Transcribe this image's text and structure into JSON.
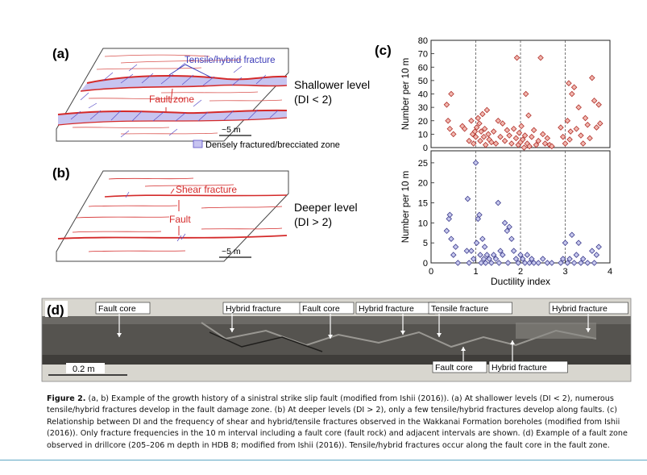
{
  "panels": {
    "a": {
      "letter": "(a)",
      "tensile_label": "Tensile/hybrid fracture",
      "fault_zone_label": "Fault zone",
      "level_label": "Shallower level",
      "di_label": "(DI < 2)",
      "scale_label": "~5 m",
      "legend_label": "Densely fractured/brecciated zone"
    },
    "b": {
      "letter": "(b)",
      "shear_label": "Shear fracture",
      "fault_label": "Fault",
      "level_label": "Deeper level",
      "di_label": "(DI > 2)",
      "scale_label": "~5 m"
    },
    "c": {
      "letter": "(c)"
    },
    "d": {
      "letter": "(d)",
      "scale_label": "0.2 m",
      "labels_top": [
        "Fault core",
        "Hybrid fracture",
        "Fault core",
        "Hybrid fracture",
        "Tensile fracture",
        "Hybrid fracture"
      ],
      "labels_bottom": [
        "Fault core",
        "Hybrid fracture"
      ]
    }
  },
  "chart_data": [
    {
      "type": "scatter",
      "name": "upper",
      "ylabel": "Number per 10 m",
      "ylim": [
        0,
        80
      ],
      "yticks": [
        0,
        10,
        20,
        30,
        40,
        50,
        60,
        70,
        80
      ],
      "xlim": [
        0,
        4
      ],
      "vlines": [
        1,
        2,
        3
      ],
      "marker_color": "#f2b8b0",
      "marker_edge": "#b0302a",
      "points": [
        [
          0.35,
          32
        ],
        [
          0.38,
          20
        ],
        [
          0.42,
          14
        ],
        [
          0.45,
          40
        ],
        [
          0.5,
          10
        ],
        [
          0.7,
          16
        ],
        [
          0.75,
          14
        ],
        [
          0.85,
          5
        ],
        [
          0.9,
          20
        ],
        [
          0.93,
          10
        ],
        [
          0.95,
          3
        ],
        [
          0.98,
          12
        ],
        [
          1.0,
          8
        ],
        [
          1.02,
          15
        ],
        [
          1.05,
          22
        ],
        [
          1.08,
          18
        ],
        [
          1.1,
          5
        ],
        [
          1.12,
          12
        ],
        [
          1.15,
          25
        ],
        [
          1.18,
          8
        ],
        [
          1.2,
          14
        ],
        [
          1.22,
          2
        ],
        [
          1.25,
          28
        ],
        [
          1.28,
          10
        ],
        [
          1.3,
          6
        ],
        [
          1.35,
          4
        ],
        [
          1.4,
          12
        ],
        [
          1.45,
          3
        ],
        [
          1.5,
          20
        ],
        [
          1.55,
          8
        ],
        [
          1.6,
          18
        ],
        [
          1.65,
          5
        ],
        [
          1.7,
          13
        ],
        [
          1.75,
          9
        ],
        [
          1.8,
          3
        ],
        [
          1.85,
          14
        ],
        [
          1.9,
          7
        ],
        [
          1.92,
          67
        ],
        [
          1.95,
          2
        ],
        [
          1.97,
          11
        ],
        [
          2.0,
          4
        ],
        [
          2.02,
          16
        ],
        [
          2.05,
          6
        ],
        [
          2.08,
          0
        ],
        [
          2.1,
          9
        ],
        [
          2.12,
          40
        ],
        [
          2.15,
          3
        ],
        [
          2.18,
          24
        ],
        [
          2.2,
          1
        ],
        [
          2.25,
          8
        ],
        [
          2.3,
          13
        ],
        [
          2.35,
          2
        ],
        [
          2.4,
          5
        ],
        [
          2.45,
          67
        ],
        [
          2.5,
          10
        ],
        [
          2.55,
          3
        ],
        [
          2.6,
          7
        ],
        [
          2.65,
          2
        ],
        [
          2.7,
          1
        ],
        [
          2.9,
          15
        ],
        [
          2.95,
          8
        ],
        [
          3.0,
          3
        ],
        [
          3.05,
          20
        ],
        [
          3.08,
          48
        ],
        [
          3.1,
          6
        ],
        [
          3.12,
          12
        ],
        [
          3.15,
          40
        ],
        [
          3.2,
          45
        ],
        [
          3.25,
          14
        ],
        [
          3.3,
          30
        ],
        [
          3.35,
          9
        ],
        [
          3.4,
          3
        ],
        [
          3.45,
          22
        ],
        [
          3.5,
          17
        ],
        [
          3.55,
          7
        ],
        [
          3.6,
          52
        ],
        [
          3.65,
          35
        ],
        [
          3.7,
          15
        ],
        [
          3.75,
          32
        ],
        [
          3.78,
          18
        ]
      ]
    },
    {
      "type": "scatter",
      "name": "lower",
      "ylabel": "Number per 10 m",
      "xlabel": "Ductility index",
      "ylim": [
        0,
        28
      ],
      "yticks": [
        0,
        5,
        10,
        15,
        20,
        25
      ],
      "xlim": [
        0,
        4
      ],
      "xticks": [
        0,
        1,
        2,
        3,
        4
      ],
      "vlines": [
        1,
        2,
        3
      ],
      "marker_color": "#c8c9ee",
      "marker_edge": "#3c3c8c",
      "points": [
        [
          0.35,
          8
        ],
        [
          0.4,
          11
        ],
        [
          0.42,
          12
        ],
        [
          0.45,
          6
        ],
        [
          0.5,
          2
        ],
        [
          0.55,
          4
        ],
        [
          0.6,
          0
        ],
        [
          0.8,
          3
        ],
        [
          0.82,
          16
        ],
        [
          0.85,
          0
        ],
        [
          0.9,
          3
        ],
        [
          0.95,
          1
        ],
        [
          1.0,
          25
        ],
        [
          1.02,
          5
        ],
        [
          1.05,
          11
        ],
        [
          1.08,
          12
        ],
        [
          1.1,
          2
        ],
        [
          1.12,
          0
        ],
        [
          1.15,
          6
        ],
        [
          1.18,
          1
        ],
        [
          1.2,
          4
        ],
        [
          1.22,
          0
        ],
        [
          1.25,
          2
        ],
        [
          1.3,
          1
        ],
        [
          1.35,
          0
        ],
        [
          1.4,
          2
        ],
        [
          1.45,
          1
        ],
        [
          1.5,
          15
        ],
        [
          1.52,
          0
        ],
        [
          1.55,
          3
        ],
        [
          1.6,
          2
        ],
        [
          1.65,
          10
        ],
        [
          1.7,
          8
        ],
        [
          1.72,
          0
        ],
        [
          1.75,
          9
        ],
        [
          1.8,
          6
        ],
        [
          1.85,
          3
        ],
        [
          1.9,
          1
        ],
        [
          1.95,
          0
        ],
        [
          2.0,
          2
        ],
        [
          2.05,
          1
        ],
        [
          2.1,
          0
        ],
        [
          2.15,
          2
        ],
        [
          2.2,
          0
        ],
        [
          2.25,
          1
        ],
        [
          2.3,
          0
        ],
        [
          2.4,
          0
        ],
        [
          2.5,
          1
        ],
        [
          2.6,
          0
        ],
        [
          2.7,
          0
        ],
        [
          2.9,
          0
        ],
        [
          2.95,
          1
        ],
        [
          3.0,
          5
        ],
        [
          3.05,
          0
        ],
        [
          3.1,
          1
        ],
        [
          3.15,
          7
        ],
        [
          3.2,
          0
        ],
        [
          3.25,
          2
        ],
        [
          3.3,
          5
        ],
        [
          3.35,
          0
        ],
        [
          3.4,
          1
        ],
        [
          3.5,
          0
        ],
        [
          3.6,
          3
        ],
        [
          3.65,
          0
        ],
        [
          3.7,
          2
        ],
        [
          3.75,
          4
        ]
      ]
    }
  ],
  "caption": {
    "figure_label": "Figure 2.",
    "text": "(a, b) Example of the growth history of a sinistral strike slip fault (modified from Ishii (2016)). (a) At shallower levels (DI < 2), numerous tensile/hybrid fractures develop in the fault damage zone. (b) At deeper levels (DI > 2), only a few tensile/hybrid fractures develop along faults. (c) Relationship between DI and the frequency of shear and hybrid/tensile fractures observed in the Wakkanai Formation boreholes (modified from Ishii (2016)). Only fracture frequencies in the 10 m interval including a fault core (fault rock) and adjacent intervals are shown. (d) Example of a fault zone observed in drillcore (205–206 m depth in HDB 8; modified from Ishii (2016)). Tensile/hybrid fractures occur along the fault core in the fault zone."
  }
}
